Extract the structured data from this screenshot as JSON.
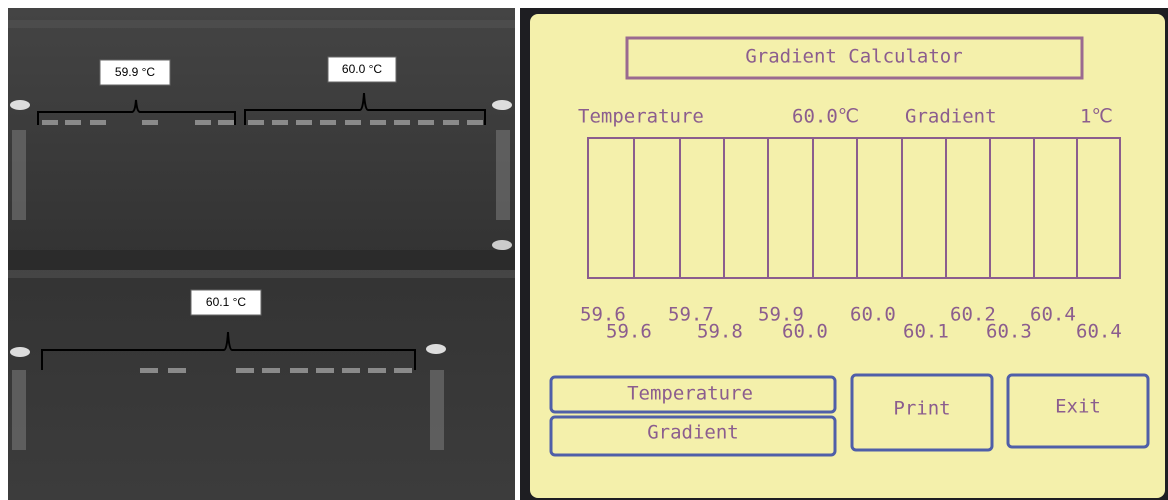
{
  "gel": {
    "labels": [
      "59.9 °C",
      "60.0 °C",
      "60.1 °C"
    ]
  },
  "screen": {
    "title": "Gradient Calculator",
    "temperature_label": "Temperature",
    "temperature_value": "60.0℃",
    "gradient_label": "Gradient",
    "gradient_value": "1℃",
    "temps_row1": [
      "59.6",
      "59.7",
      "59.9",
      "60.0",
      "60.2",
      "60.4"
    ],
    "temps_row2": [
      "59.6",
      "59.8",
      "60.0",
      "60.1",
      "60.3",
      "60.4"
    ],
    "buttons": {
      "temperature": "Temperature",
      "gradient": "Gradient",
      "print": "Print",
      "exit": "Exit"
    }
  }
}
